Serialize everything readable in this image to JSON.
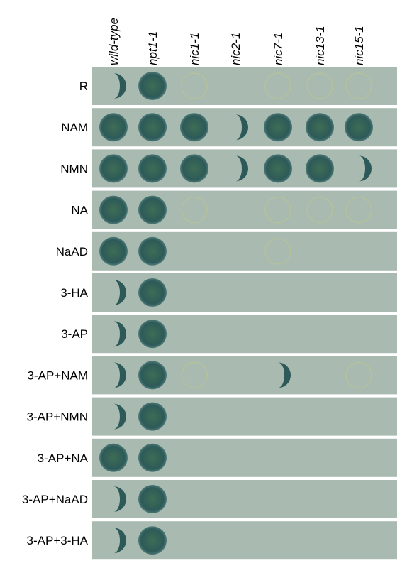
{
  "columns": [
    "wild-type",
    "npt1-1",
    "nic1-1",
    "nic2-1",
    "nic7-1",
    "nic13-1",
    "nic15-1"
  ],
  "rows": [
    "R",
    "NAM",
    "NMN",
    "NA",
    "NaAD",
    "3-HA",
    "3-AP",
    "3-AP+NAM",
    "3-AP+NMN",
    "3-AP+NA",
    "3-AP+NaAD",
    "3-AP+3-HA"
  ]
}
